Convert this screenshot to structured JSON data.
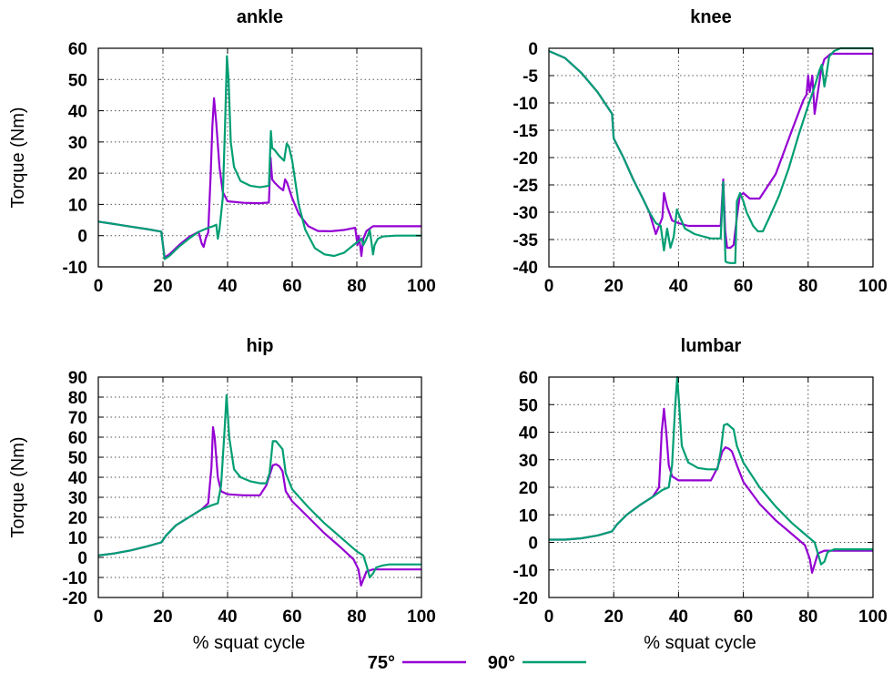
{
  "colors": {
    "s75": "#9400d3",
    "s90": "#009e73"
  },
  "legend": [
    {
      "name": "75°",
      "color": "#9400d3"
    },
    {
      "name": "90°",
      "color": "#009e73"
    }
  ],
  "chart_data": [
    {
      "type": "line",
      "title": "ankle",
      "xlabel": "",
      "ylabel": "Torque (Nm)",
      "xlim": [
        0,
        100
      ],
      "ylim": [
        -10,
        60
      ],
      "xticks": [
        0,
        20,
        40,
        60,
        80,
        100
      ],
      "yticks": [
        -10,
        0,
        10,
        20,
        30,
        40,
        50,
        60
      ],
      "grid": true,
      "series": [
        {
          "name": "75°",
          "x": [
            0,
            5,
            10,
            15,
            19.5,
            20.5,
            22,
            25,
            28,
            31,
            32,
            32.6,
            33.2,
            34,
            34.8,
            35.3,
            35.8,
            36.5,
            37.5,
            38.5,
            40,
            45,
            50,
            52.8,
            53.3,
            53.8,
            54.5,
            56,
            57.2,
            57.8,
            58.4,
            60,
            62,
            65,
            68,
            72,
            76,
            79.5,
            80.2,
            80.6,
            81,
            81.4,
            82,
            83,
            85,
            90,
            95,
            100
          ],
          "y": [
            4.5,
            3.7,
            2.9,
            2.1,
            1.3,
            -7,
            -6,
            -3,
            -0.5,
            1.2,
            -2.5,
            -3.6,
            -1,
            1,
            20,
            35,
            44,
            36,
            22,
            14,
            11,
            10.5,
            10.4,
            10.6,
            25,
            18,
            17,
            15.5,
            14.5,
            18,
            17,
            12,
            7,
            3,
            1.5,
            1.4,
            1.8,
            2.5,
            -3,
            0,
            -3,
            -6.5,
            -1,
            1.5,
            3,
            3,
            3,
            3
          ]
        },
        {
          "name": "90°",
          "x": [
            0,
            5,
            10,
            15,
            19.5,
            20.5,
            22,
            25,
            28,
            31,
            34,
            35.5,
            36.5,
            37,
            37.5,
            38.5,
            39.2,
            39.8,
            40.3,
            41,
            42,
            44,
            47,
            50,
            52.8,
            53.4,
            53.8,
            54.5,
            56,
            57.5,
            58.3,
            59,
            60,
            62,
            64,
            67,
            70,
            73,
            76,
            79,
            81.5,
            82,
            82.5,
            83.2,
            84,
            84.5,
            85,
            85.5,
            86.5,
            88,
            92,
            96,
            100
          ],
          "y": [
            4.5,
            3.7,
            2.9,
            2.1,
            1.3,
            -7.5,
            -6.5,
            -3.5,
            -1,
            1.2,
            2.5,
            3,
            3.5,
            -1,
            2,
            12,
            35,
            57.5,
            50,
            30,
            22,
            17.5,
            16,
            15.5,
            16,
            33.5,
            28,
            27.5,
            25.5,
            24,
            29.5,
            28.5,
            24,
            10,
            2,
            -4,
            -6,
            -6.5,
            -5.5,
            -3,
            -1,
            -3,
            -2,
            -0.5,
            1.8,
            -2,
            -6,
            -3,
            -1,
            -0.3,
            0,
            0,
            0
          ]
        }
      ]
    },
    {
      "type": "line",
      "title": "knee",
      "xlabel": "",
      "ylabel": "",
      "xlim": [
        0,
        100
      ],
      "ylim": [
        -40,
        0
      ],
      "xticks": [
        0,
        20,
        40,
        60,
        80,
        100
      ],
      "yticks": [
        -40,
        -35,
        -30,
        -25,
        -20,
        -15,
        -10,
        -5,
        0
      ],
      "grid": true,
      "series": [
        {
          "name": "75°",
          "x": [
            0,
            5,
            10,
            15,
            19.5,
            20,
            23,
            26,
            29,
            31,
            32,
            33,
            34,
            35,
            35.5,
            36.5,
            38,
            40,
            43,
            46,
            50,
            53,
            53.8,
            54.4,
            55,
            56,
            57,
            58.2,
            58.9,
            60,
            62,
            65,
            70,
            75,
            78.5,
            79.5,
            80,
            80.5,
            81.3,
            82,
            83,
            84,
            85,
            86,
            87,
            90,
            95,
            100
          ],
          "y": [
            -0.5,
            -1.8,
            -4.5,
            -8,
            -12,
            -16.5,
            -20,
            -24,
            -27.5,
            -30,
            -32,
            -34,
            -32.5,
            -31,
            -26.5,
            -29,
            -31.5,
            -32,
            -32.5,
            -32.5,
            -32.5,
            -32.5,
            -24,
            -33.5,
            -36.5,
            -36.5,
            -36,
            -30,
            -27,
            -26.5,
            -27.5,
            -27.5,
            -23,
            -15,
            -9.5,
            -8.5,
            -5,
            -8,
            -5,
            -12,
            -8,
            -4,
            -2,
            -1.5,
            -1,
            -1,
            -1,
            -1
          ]
        },
        {
          "name": "90°",
          "x": [
            0,
            5,
            10,
            15,
            19.5,
            20,
            23,
            26,
            29,
            31,
            33,
            34.5,
            35.5,
            36.5,
            37.5,
            38.5,
            39.5,
            40.5,
            42,
            45,
            48,
            50,
            53,
            53.8,
            54.5,
            55,
            56,
            57,
            57.5,
            58,
            59,
            60,
            61,
            63,
            64.5,
            66,
            68,
            71,
            74,
            77,
            80,
            82,
            83,
            83.5,
            84.2,
            85,
            85.6,
            86.5,
            88,
            90,
            95,
            100
          ],
          "y": [
            -0.5,
            -1.8,
            -4.5,
            -8,
            -12,
            -16.5,
            -20,
            -24,
            -27.5,
            -30,
            -32,
            -32.5,
            -37,
            -33,
            -36.5,
            -34.5,
            -29.5,
            -31,
            -33,
            -34,
            -34.5,
            -34.8,
            -34.8,
            -24.5,
            -39,
            -39.2,
            -39.3,
            -39.3,
            -39.3,
            -28,
            -26.5,
            -28,
            -30,
            -32.5,
            -33.5,
            -33.5,
            -31,
            -27,
            -22,
            -16,
            -10.5,
            -7,
            -5,
            -4,
            -3,
            -7,
            -5,
            -1.5,
            -0.5,
            0,
            0,
            0
          ]
        }
      ]
    },
    {
      "type": "line",
      "title": "hip",
      "xlabel": "% squat cycle",
      "ylabel": "Torque (Nm)",
      "xlim": [
        0,
        100
      ],
      "ylim": [
        -20,
        90
      ],
      "xticks": [
        0,
        20,
        40,
        60,
        80,
        100
      ],
      "yticks": [
        -20,
        -10,
        0,
        10,
        20,
        30,
        40,
        50,
        60,
        70,
        80,
        90
      ],
      "grid": true,
      "series": [
        {
          "name": "75°",
          "x": [
            0,
            5,
            10,
            15,
            19.5,
            21,
            24,
            28,
            32,
            34,
            35,
            35.5,
            36,
            37,
            38,
            40,
            45,
            50,
            52,
            54,
            55,
            56,
            57,
            58,
            60,
            65,
            70,
            75,
            79,
            80.5,
            81.3,
            82,
            83,
            85,
            90,
            95,
            100
          ],
          "y": [
            1,
            2,
            3.5,
            5.5,
            7.5,
            11,
            16,
            20,
            24,
            27,
            45,
            65,
            60,
            40,
            33,
            31.5,
            31,
            31,
            36,
            46,
            46.5,
            45.5,
            43,
            33,
            28,
            20,
            12,
            5,
            -1,
            -6,
            -14,
            -11,
            -7,
            -6,
            -6,
            -6,
            -6
          ]
        },
        {
          "name": "90°",
          "x": [
            0,
            5,
            10,
            15,
            19.5,
            21,
            24,
            28,
            32,
            35,
            37,
            38,
            39,
            39.7,
            40.5,
            42,
            44,
            47,
            50,
            52,
            53,
            54,
            55,
            56,
            57,
            58,
            60,
            65,
            70,
            75,
            80,
            82,
            83,
            84,
            85,
            86,
            88,
            90,
            95,
            100
          ],
          "y": [
            1,
            2,
            3.5,
            5.5,
            7.5,
            11,
            16,
            20,
            24,
            26,
            27,
            36,
            62,
            81,
            60,
            44,
            40,
            38,
            37,
            37,
            42,
            58,
            58,
            56,
            54,
            42,
            34,
            25,
            17,
            10,
            3,
            1,
            -4,
            -10,
            -8,
            -5,
            -4,
            -3.5,
            -3.5,
            -3.5
          ]
        }
      ]
    },
    {
      "type": "line",
      "title": "lumbar",
      "xlabel": "% squat cycle",
      "ylabel": "",
      "xlim": [
        0,
        100
      ],
      "ylim": [
        -20,
        60
      ],
      "xticks": [
        0,
        20,
        40,
        60,
        80,
        100
      ],
      "yticks": [
        -20,
        -10,
        0,
        10,
        20,
        30,
        40,
        50,
        60
      ],
      "grid": true,
      "series": [
        {
          "name": "75°",
          "x": [
            0,
            5,
            10,
            15,
            19.5,
            21,
            24,
            28,
            32,
            34,
            34.8,
            35.5,
            36.2,
            37,
            38,
            40,
            45,
            50,
            52,
            53.5,
            54.5,
            55.5,
            56.5,
            58,
            60,
            65,
            70,
            75,
            79,
            80.5,
            81.2,
            82,
            83,
            85,
            90,
            95,
            100
          ],
          "y": [
            1,
            1,
            1.5,
            2.5,
            4,
            6.5,
            10,
            13.5,
            16.5,
            20,
            40,
            48.5,
            40,
            28,
            24,
            22.5,
            22.5,
            22.5,
            27,
            33,
            34.5,
            34,
            33,
            28,
            22,
            14,
            8,
            3,
            -1,
            -6,
            -11,
            -8,
            -4,
            -3,
            -3,
            -3,
            -3
          ]
        },
        {
          "name": "90°",
          "x": [
            0,
            5,
            10,
            15,
            19.5,
            21,
            24,
            28,
            32,
            35,
            37,
            38,
            39,
            39.6,
            40.2,
            41,
            43,
            46,
            49,
            52,
            53,
            54,
            55,
            56,
            57,
            58,
            60,
            65,
            70,
            75,
            80,
            82,
            83,
            84,
            85,
            86,
            88,
            90,
            95,
            100
          ],
          "y": [
            1,
            1,
            1.5,
            2.5,
            4,
            6.5,
            10,
            13.5,
            16.5,
            19,
            20,
            28,
            50,
            60,
            50,
            35,
            29,
            27,
            26.5,
            26.5,
            33,
            42.5,
            43,
            42,
            41,
            35,
            29,
            20,
            13,
            7,
            2,
            0,
            -4,
            -8,
            -7,
            -3.5,
            -2.5,
            -2.5,
            -2.5,
            -2.5
          ]
        }
      ]
    }
  ]
}
